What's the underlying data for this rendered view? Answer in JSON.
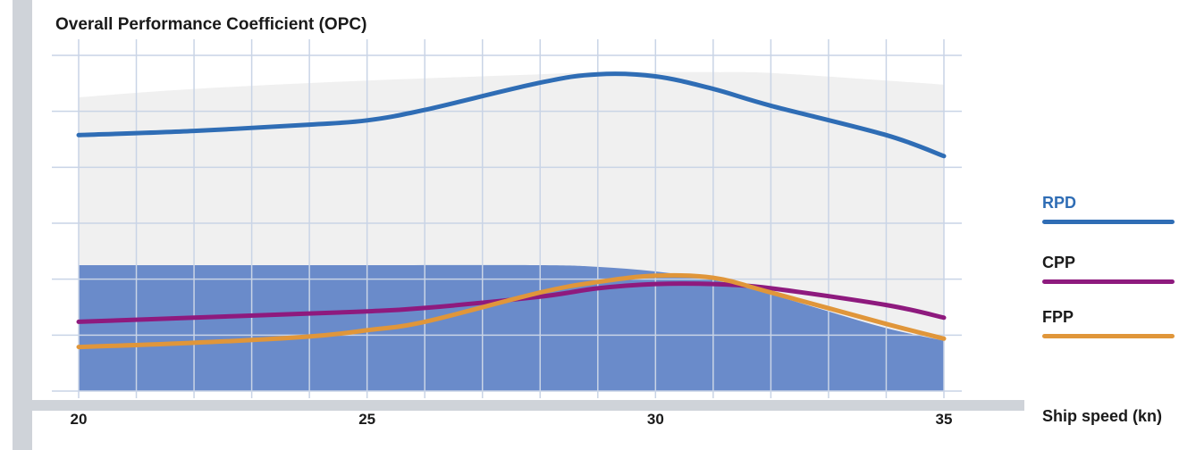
{
  "chart_data": {
    "type": "line",
    "title": "Overall Performance Coefficient (OPC)",
    "xlabel": "Ship speed (kn)",
    "ylabel": "",
    "xlim": [
      20,
      35
    ],
    "x_ticks": [
      20,
      25,
      30,
      35
    ],
    "grid": true,
    "legend_position": "right",
    "x": [
      20,
      22,
      24,
      25,
      26,
      28,
      29,
      30,
      31,
      32,
      34,
      35
    ],
    "series": [
      {
        "name": "RPD",
        "color": "#2f6db5",
        "values": [
          6.1,
          6.2,
          6.35,
          6.45,
          6.7,
          7.35,
          7.55,
          7.5,
          7.2,
          6.8,
          6.1,
          5.6
        ]
      },
      {
        "name": "CPP",
        "color": "#8e1a7e",
        "values": [
          1.65,
          1.75,
          1.85,
          1.9,
          1.98,
          2.25,
          2.45,
          2.55,
          2.55,
          2.45,
          2.05,
          1.75
        ]
      },
      {
        "name": "FPP",
        "color": "#e0963a",
        "values": [
          1.05,
          1.15,
          1.3,
          1.45,
          1.65,
          2.35,
          2.6,
          2.75,
          2.7,
          2.35,
          1.6,
          1.25
        ]
      }
    ],
    "background_areas": [
      {
        "color": "#f0f0f0",
        "x": [
          20,
          22,
          25,
          28,
          29,
          30,
          31,
          32,
          34,
          35
        ],
        "values": [
          7.0,
          7.2,
          7.4,
          7.55,
          7.6,
          7.6,
          7.6,
          7.58,
          7.4,
          7.3
        ]
      },
      {
        "color": "#6a8bca",
        "x": [
          20,
          25,
          28,
          29,
          30,
          31,
          32,
          33,
          34,
          35
        ],
        "values": [
          3.0,
          3.0,
          3.0,
          2.96,
          2.85,
          2.65,
          2.3,
          1.9,
          1.5,
          1.2
        ]
      }
    ]
  }
}
